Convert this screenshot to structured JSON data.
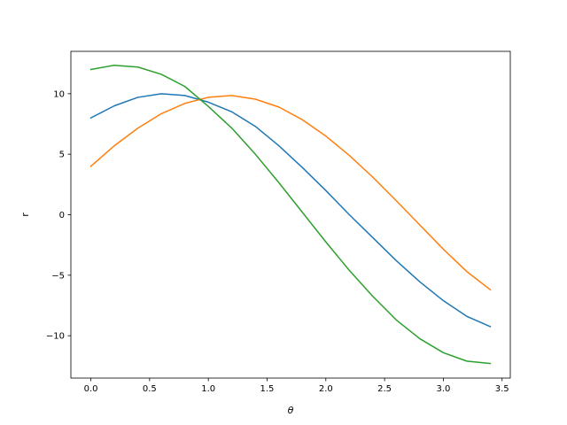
{
  "chart_data": {
    "type": "line",
    "title": "",
    "xlabel": "θ",
    "ylabel": "r",
    "xlim": [
      -0.17,
      3.57
    ],
    "ylim": [
      -13.5,
      13.5
    ],
    "grid": false,
    "x": [
      0.0,
      0.2,
      0.4,
      0.6,
      0.8,
      1.0,
      1.2,
      1.4,
      1.6,
      1.8,
      2.0,
      2.2,
      2.4,
      2.6,
      2.8,
      3.0,
      3.2,
      3.4
    ],
    "x_ticks": [
      0.0,
      0.5,
      1.0,
      1.5,
      2.0,
      2.5,
      3.0,
      3.5
    ],
    "x_tick_labels": [
      "0.0",
      "0.5",
      "1.0",
      "1.5",
      "2.0",
      "2.5",
      "3.0",
      "3.5"
    ],
    "y_ticks": [
      -10,
      -5,
      0,
      5,
      10
    ],
    "y_tick_labels": [
      "−10",
      "−5",
      "0",
      "5",
      "10"
    ],
    "series": [
      {
        "color": "#1f77b4",
        "values": [
          8.0,
          9.0,
          9.7,
          10.0,
          9.85,
          9.3,
          8.5,
          7.3,
          5.7,
          3.9,
          2.0,
          0.0,
          -1.9,
          -3.8,
          -5.55,
          -7.1,
          -8.4,
          -9.25
        ]
      },
      {
        "color": "#ff7f0e",
        "values": [
          4.0,
          5.7,
          7.15,
          8.35,
          9.2,
          9.7,
          9.85,
          9.55,
          8.9,
          7.85,
          6.5,
          4.9,
          3.1,
          1.15,
          -0.85,
          -2.85,
          -4.7,
          -6.2
        ]
      },
      {
        "color": "#2ca02c",
        "values": [
          12.0,
          12.35,
          12.2,
          11.6,
          10.6,
          8.95,
          7.15,
          5.0,
          2.65,
          0.2,
          -2.25,
          -4.6,
          -6.75,
          -8.7,
          -10.25,
          -11.4,
          -12.1,
          -12.3
        ]
      }
    ]
  }
}
